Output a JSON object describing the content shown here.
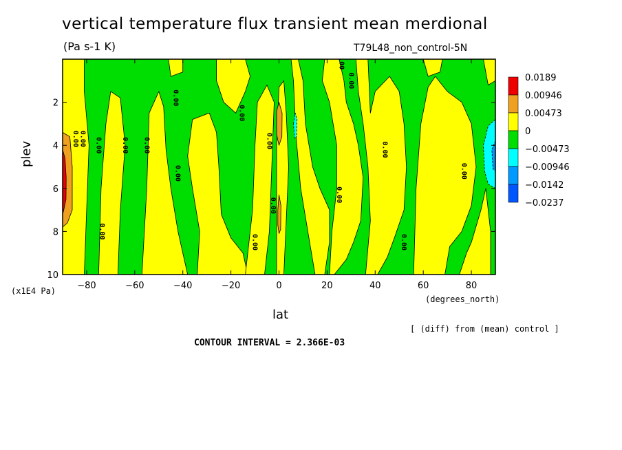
{
  "chart_data": {
    "type": "heatmap",
    "title": "vertical temperature flux transient mean merdional",
    "units": "(Pa s-1 K)",
    "dataset": "T79L48_non_control-5N",
    "xlabel": "lat",
    "x_unit_label": "(degrees_north)",
    "ylabel": "plev",
    "y_unit_label": "(x1E4 Pa)",
    "footnote": "[ (diff) from (mean) control ]",
    "contour_interval_text": "CONTOUR INTERVAL = 2.366E-03",
    "xlim": [
      -90,
      90
    ],
    "ylim": [
      0,
      10
    ],
    "y_inverted": true,
    "x_ticks": [
      -80,
      -60,
      -40,
      -20,
      0,
      20,
      40,
      60,
      80
    ],
    "x_tick_labels": [
      "−80",
      "−60",
      "−40",
      "−20",
      "0",
      "20",
      "40",
      "60",
      "80"
    ],
    "y_ticks": [
      2,
      4,
      6,
      8,
      10
    ],
    "y_tick_labels": [
      "2",
      "4",
      "6",
      "8",
      "10"
    ],
    "contour_label": "0.00",
    "legend": [
      {
        "label": "0.0189",
        "color": "#ee0000"
      },
      {
        "label": "0.00946",
        "color": "#f0a020"
      },
      {
        "label": "0.00473",
        "color": "#ffff00"
      },
      {
        "label": "0",
        "color": "#00dd00"
      },
      {
        "label": "−0.00473",
        "color": "#00ffff"
      },
      {
        "label": "−0.00946",
        "color": "#0099ff"
      },
      {
        "label": "−0.0142",
        "color": "#0055ff"
      },
      {
        "label": "−0.0237",
        "color": ""
      }
    ],
    "background_color": "#00dd00",
    "regions": [
      {
        "level": "positive",
        "poly": [
          [
            -90,
            0
          ],
          [
            -81,
            0
          ],
          [
            -81,
            1.5
          ],
          [
            -79,
            4
          ],
          [
            -80,
            7
          ],
          [
            -81,
            10
          ],
          [
            -90,
            10
          ]
        ]
      },
      {
        "level": "positive",
        "poly": [
          [
            -75,
            10
          ],
          [
            -74,
            6
          ],
          [
            -72,
            3
          ],
          [
            -70,
            1.5
          ],
          [
            -66,
            1.8
          ],
          [
            -64,
            4
          ],
          [
            -66,
            7
          ],
          [
            -67,
            10
          ]
        ]
      },
      {
        "level": "positive",
        "poly": [
          [
            -57,
            10
          ],
          [
            -55,
            6
          ],
          [
            -54,
            2.5
          ],
          [
            -50,
            1.5
          ],
          [
            -48,
            2.2
          ],
          [
            -47,
            4.2
          ],
          [
            -45,
            6
          ],
          [
            -42,
            8
          ],
          [
            -38,
            10
          ]
        ]
      },
      {
        "level": "positive",
        "poly": [
          [
            -46,
            0
          ],
          [
            -40,
            0
          ],
          [
            -40,
            0.6
          ],
          [
            -45,
            0.8
          ]
        ]
      },
      {
        "level": "positive",
        "poly": [
          [
            -34,
            10
          ],
          [
            -33,
            8
          ],
          [
            -36,
            6
          ],
          [
            -38,
            4.5
          ],
          [
            -36,
            2.8
          ],
          [
            -29,
            2.5
          ],
          [
            -26,
            3.4
          ],
          [
            -25,
            5
          ],
          [
            -24,
            7.2
          ],
          [
            -20,
            8.3
          ],
          [
            -15,
            9
          ],
          [
            -13,
            10
          ]
        ]
      },
      {
        "level": "positive",
        "poly": [
          [
            -26,
            0
          ],
          [
            -14,
            0
          ],
          [
            -12,
            0.8
          ],
          [
            -14,
            1.5
          ],
          [
            -18,
            2.5
          ],
          [
            -23,
            2
          ],
          [
            -26,
            1
          ]
        ]
      },
      {
        "level": "positive",
        "poly": [
          [
            -14,
            10
          ],
          [
            -11,
            7
          ],
          [
            -10,
            4
          ],
          [
            -9,
            2
          ],
          [
            -5,
            1.2
          ],
          [
            -2,
            2
          ],
          [
            -3,
            5
          ],
          [
            -4,
            8
          ],
          [
            -6,
            10
          ]
        ]
      },
      {
        "level": "positive",
        "poly": [
          [
            -1,
            10
          ],
          [
            -1,
            7.5
          ],
          [
            -1,
            4
          ],
          [
            0,
            1.3
          ],
          [
            2,
            1
          ],
          [
            3,
            2.5
          ],
          [
            4,
            5
          ],
          [
            3,
            7.5
          ],
          [
            2,
            10
          ]
        ]
      },
      {
        "level": "positive",
        "poly": [
          [
            5,
            0
          ],
          [
            8,
            0
          ],
          [
            10,
            1
          ],
          [
            11,
            3
          ],
          [
            14,
            5
          ],
          [
            17,
            6
          ],
          [
            21,
            7
          ],
          [
            21,
            8.5
          ],
          [
            19,
            10
          ],
          [
            15,
            10
          ],
          [
            12,
            8
          ],
          [
            9,
            6
          ],
          [
            7,
            3.5
          ],
          [
            6,
            1
          ]
        ]
      },
      {
        "level": "positive",
        "poly": [
          [
            19,
            0
          ],
          [
            25,
            0
          ],
          [
            27,
            1
          ],
          [
            28,
            2
          ],
          [
            31,
            3
          ],
          [
            33,
            4
          ],
          [
            35,
            5.5
          ],
          [
            34,
            7.5
          ],
          [
            31,
            8.5
          ],
          [
            28,
            9.3
          ],
          [
            23,
            10
          ],
          [
            21,
            10
          ],
          [
            22,
            8
          ],
          [
            24,
            6
          ],
          [
            24,
            4
          ],
          [
            21,
            2
          ],
          [
            18,
            1
          ]
        ]
      },
      {
        "level": "positive",
        "poly": [
          [
            32,
            0
          ],
          [
            37,
            0
          ],
          [
            38,
            2.5
          ],
          [
            40,
            1.5
          ],
          [
            46,
            0.8
          ],
          [
            50,
            1.5
          ],
          [
            52,
            3
          ],
          [
            53,
            5
          ],
          [
            52,
            7
          ],
          [
            48,
            8.3
          ],
          [
            45,
            9.2
          ],
          [
            41,
            10
          ],
          [
            36,
            10
          ],
          [
            38,
            7.5
          ],
          [
            37,
            5
          ],
          [
            35,
            3
          ],
          [
            33,
            1.5
          ]
        ]
      },
      {
        "level": "positive",
        "poly": [
          [
            56,
            10
          ],
          [
            57,
            6
          ],
          [
            59,
            3
          ],
          [
            62,
            1.3
          ],
          [
            65,
            0.8
          ],
          [
            70,
            1.5
          ],
          [
            76,
            2
          ],
          [
            80,
            3
          ],
          [
            82,
            5
          ],
          [
            80,
            6.8
          ],
          [
            76,
            8
          ],
          [
            71,
            8.7
          ],
          [
            69,
            10
          ]
        ]
      },
      {
        "level": "positive",
        "poly": [
          [
            75,
            10
          ],
          [
            78,
            9
          ],
          [
            80,
            8.5
          ],
          [
            84,
            7
          ],
          [
            86,
            6
          ],
          [
            88,
            8
          ],
          [
            88,
            10
          ]
        ]
      },
      {
        "level": "positive",
        "poly": [
          [
            85,
            0
          ],
          [
            90,
            0
          ],
          [
            90,
            1
          ],
          [
            87,
            1.2
          ]
        ]
      },
      {
        "level": "positive",
        "poly": [
          [
            60,
            0
          ],
          [
            68,
            0
          ],
          [
            67,
            0.6
          ],
          [
            62,
            0.8
          ]
        ]
      },
      {
        "level": "strong_positive",
        "poly": [
          [
            -90,
            3.4
          ],
          [
            -87,
            3.6
          ],
          [
            -86,
            5
          ],
          [
            -86,
            7
          ],
          [
            -88,
            7.6
          ],
          [
            -90,
            7.8
          ]
        ]
      },
      {
        "level": "strong_positive",
        "poly": [
          [
            -1,
            2.4
          ],
          [
            0,
            2
          ],
          [
            1.3,
            2.5
          ],
          [
            1.2,
            3.6
          ],
          [
            0,
            4
          ],
          [
            -1,
            3.5
          ]
        ]
      },
      {
        "level": "strong_positive",
        "poly": [
          [
            -0.5,
            7
          ],
          [
            0,
            6.3
          ],
          [
            0.8,
            6.8
          ],
          [
            0.7,
            7.9
          ],
          [
            0,
            8.1
          ],
          [
            -0.5,
            7.7
          ]
        ]
      },
      {
        "level": "extreme_positive",
        "poly": [
          [
            -90,
            4.2
          ],
          [
            -89,
            4.6
          ],
          [
            -88.5,
            5.5
          ],
          [
            -88.6,
            6.5
          ],
          [
            -89.5,
            7
          ],
          [
            -90,
            7.2
          ]
        ]
      },
      {
        "level": "negative",
        "poly": [
          [
            6,
            3
          ],
          [
            6.8,
            2.5
          ],
          [
            7.5,
            2.8
          ],
          [
            7.3,
            3.6
          ],
          [
            6.5,
            3.7
          ]
        ]
      },
      {
        "level": "negative",
        "poly": [
          [
            90,
            2.8
          ],
          [
            87,
            3.1
          ],
          [
            85,
            4
          ],
          [
            85.5,
            5.2
          ],
          [
            87,
            5.8
          ],
          [
            90,
            6
          ]
        ]
      },
      {
        "level": "strong_negative",
        "poly": [
          [
            90,
            3.8
          ],
          [
            88.5,
            4.2
          ],
          [
            89,
            5.1
          ],
          [
            90,
            5.2
          ]
        ]
      }
    ]
  }
}
